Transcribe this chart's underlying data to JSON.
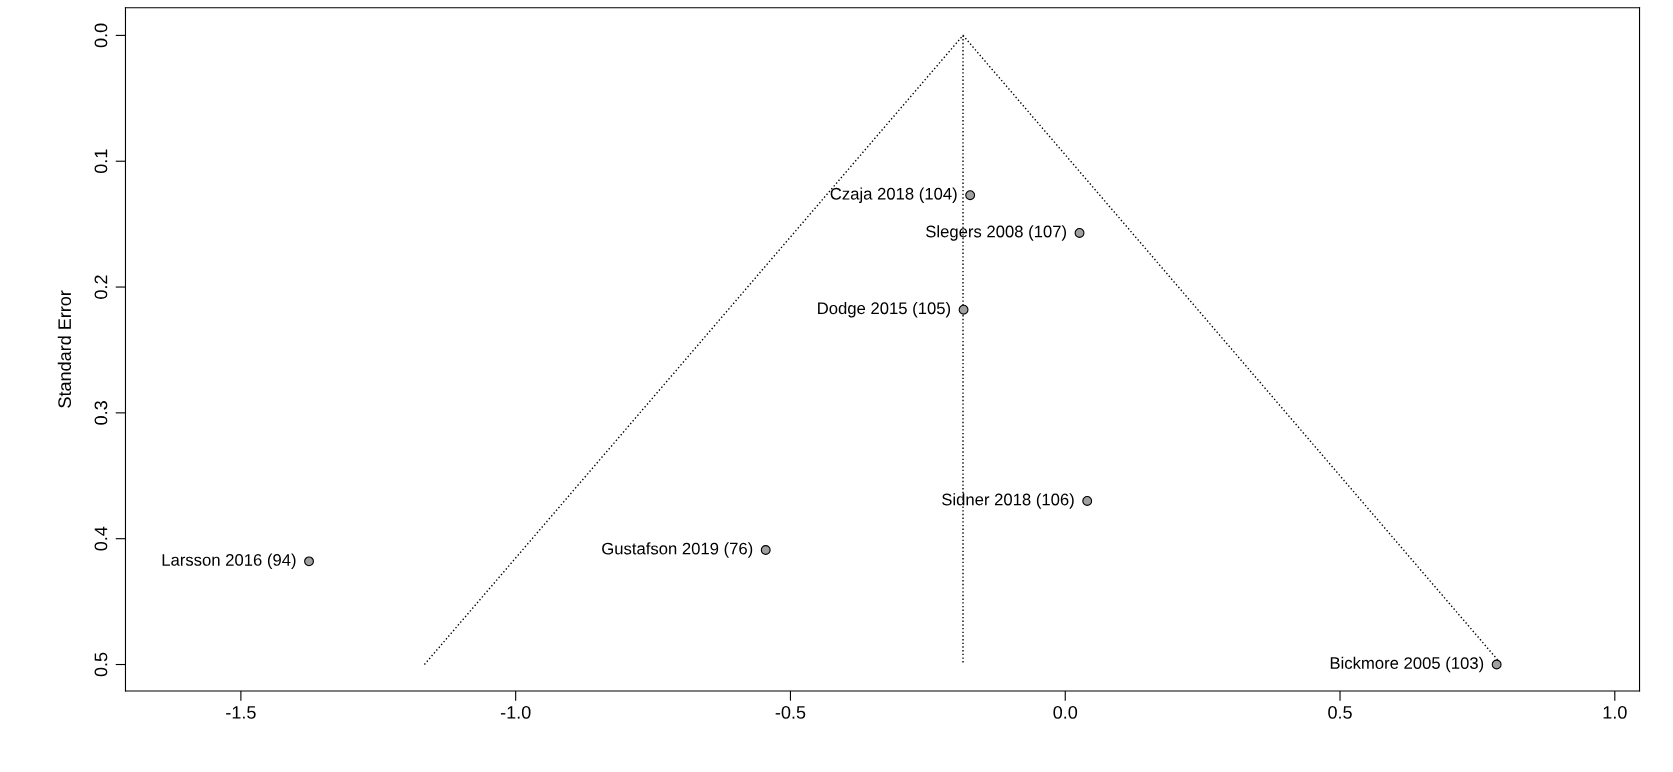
{
  "chart_data": {
    "type": "scatter",
    "ylabel": "Standard Error",
    "xlim": [
      -1.71,
      1.045
    ],
    "ylim": [
      0.521,
      -0.022
    ],
    "xticks": [
      {
        "value": -1.5,
        "label": "-1.5"
      },
      {
        "value": -1.0,
        "label": "-1.0"
      },
      {
        "value": -0.5,
        "label": "-0.5"
      },
      {
        "value": 0.0,
        "label": "0.0"
      },
      {
        "value": 0.5,
        "label": "0.5"
      },
      {
        "value": 1.0,
        "label": "1.0"
      }
    ],
    "yticks": [
      {
        "value": 0.0,
        "label": "0.0"
      },
      0.1,
      0.2,
      0.3,
      0.4,
      0.5
    ],
    "grid": false,
    "legend": false,
    "series": [
      {
        "marker": "circle",
        "color": "#a0a0a0",
        "x": [
          -0.173,
          0.026,
          -0.185,
          0.04,
          -0.545,
          -1.376,
          0.785
        ],
        "values": [
          0.127,
          0.157,
          0.218,
          0.37,
          0.409,
          0.418,
          0.5
        ]
      },
      {
        "type": "line",
        "marker": "none",
        "color": "#000000",
        "line_style": "dotted",
        "x": [
          -1.166,
          -0.186,
          0.794
        ],
        "values": [
          0.5,
          0.0,
          0.5
        ]
      },
      {
        "type": "line",
        "marker": "none",
        "color": "#000000",
        "line_style": "dotted",
        "x": [
          -0.186,
          -0.186
        ],
        "values": [
          0.0,
          0.5
        ]
      }
    ],
    "annotations": [
      {
        "text": "Czaja 2018 (104)",
        "x": -0.173,
        "y": 0.127
      },
      {
        "text": "Slegers 2008 (107)",
        "x": 0.026,
        "y": 0.157
      },
      {
        "text": "Dodge 2015 (105)",
        "x": -0.185,
        "y": 0.218
      },
      {
        "text": "Sidner 2018 (106)",
        "x": 0.04,
        "y": 0.37
      },
      {
        "text": "Gustafson 2019 (76)",
        "x": -0.545,
        "y": 0.409
      },
      {
        "text": "Larsson 2016 (94)",
        "x": -1.376,
        "y": 0.418
      },
      {
        "text": "Bickmore 2005 (103)",
        "x": 0.785,
        "y": 0.5
      }
    ]
  }
}
